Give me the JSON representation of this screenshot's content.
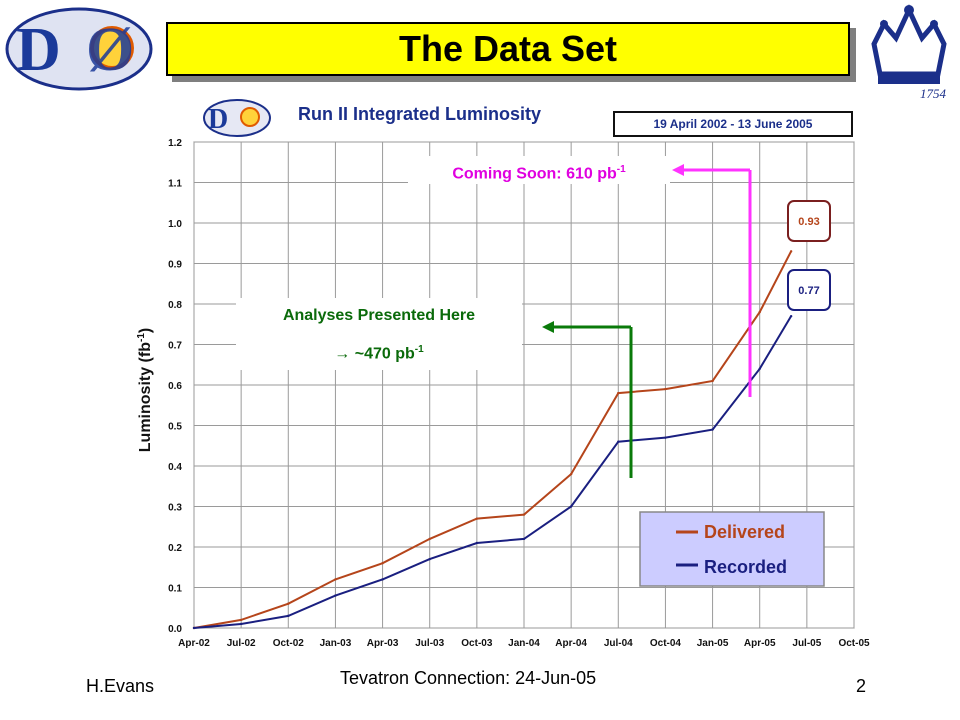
{
  "slide": {
    "title": "The Data Set",
    "footer": {
      "author": "H.Evans",
      "event": "Tevatron Connection: 24-Jun-05",
      "page": "2"
    }
  },
  "logos": {
    "left": "DØ",
    "right_year": "1754"
  },
  "annotations": {
    "coming_soon": {
      "text": "Coming Soon: 610 pb",
      "exp": "-1",
      "color": "#e000e0"
    },
    "presented": {
      "line1": "Analyses Presented Here",
      "line2": "→ ~470 pb",
      "exp": "-1",
      "color": "#0a6a0a"
    }
  },
  "chart_data": {
    "type": "line",
    "title": "Run II Integrated Luminosity",
    "date_range": "19 April 2002 - 13 June 2005",
    "ylabel": "Luminosity (fb",
    "ylabel_exp": "-1",
    "ylabel_close": ")",
    "xlabel": "",
    "ylim": [
      0,
      1.2
    ],
    "yticks": [
      "0.0",
      "0.1",
      "0.2",
      "0.3",
      "0.4",
      "0.5",
      "0.6",
      "0.7",
      "0.8",
      "0.9",
      "1.0",
      "1.1",
      "1.2"
    ],
    "categories": [
      "Apr-02",
      "Jul-02",
      "Oct-02",
      "Jan-03",
      "Apr-03",
      "Jul-03",
      "Oct-03",
      "Jan-04",
      "Apr-04",
      "Jul-04",
      "Oct-04",
      "Jan-05",
      "Apr-05",
      "Jul-05",
      "Oct-05"
    ],
    "grid": true,
    "series": [
      {
        "name": "Delivered",
        "color": "#b5451b",
        "x": [
          "Apr-02",
          "Jul-02",
          "Oct-02",
          "Jan-03",
          "Apr-03",
          "Jul-03",
          "Oct-03",
          "Jan-04",
          "Apr-04",
          "Jul-04",
          "Oct-04",
          "Jan-05",
          "Apr-05",
          "Jun-05"
        ],
        "values": [
          0.0,
          0.02,
          0.06,
          0.12,
          0.16,
          0.22,
          0.27,
          0.28,
          0.38,
          0.58,
          0.59,
          0.61,
          0.78,
          0.93
        ],
        "end_label": "0.93"
      },
      {
        "name": "Recorded",
        "color": "#1a1f80",
        "x": [
          "Apr-02",
          "Jul-02",
          "Oct-02",
          "Jan-03",
          "Apr-03",
          "Jul-03",
          "Oct-03",
          "Jan-04",
          "Apr-04",
          "Jul-04",
          "Oct-04",
          "Jan-05",
          "Apr-05",
          "Jun-05"
        ],
        "values": [
          0.0,
          0.01,
          0.03,
          0.08,
          0.12,
          0.17,
          0.21,
          0.22,
          0.3,
          0.46,
          0.47,
          0.49,
          0.64,
          0.77
        ],
        "end_label": "0.77"
      }
    ],
    "legend_position": "bottom-right"
  }
}
